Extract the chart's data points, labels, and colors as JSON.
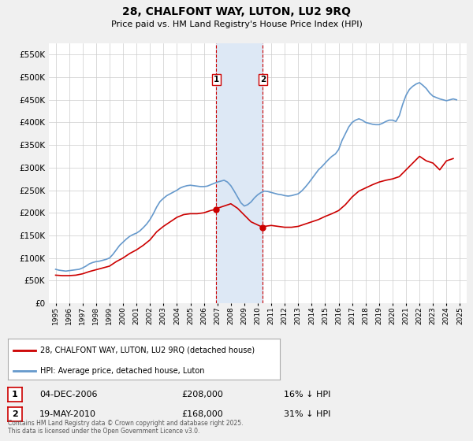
{
  "title": "28, CHALFONT WAY, LUTON, LU2 9RQ",
  "subtitle": "Price paid vs. HM Land Registry's House Price Index (HPI)",
  "legend_entry1": "28, CHALFONT WAY, LUTON, LU2 9RQ (detached house)",
  "legend_entry2": "HPI: Average price, detached house, Luton",
  "footnote": "Contains HM Land Registry data © Crown copyright and database right 2025.\nThis data is licensed under the Open Government Licence v3.0.",
  "sale1_date": "04-DEC-2006",
  "sale1_price": 208000,
  "sale1_hpi_diff": "16% ↓ HPI",
  "sale2_date": "19-MAY-2010",
  "sale2_price": 168000,
  "sale2_hpi_diff": "31% ↓ HPI",
  "sale1_x": 2006.92,
  "sale2_x": 2010.38,
  "background_color": "#f0f0f0",
  "plot_bg_color": "#ffffff",
  "grid_color": "#cccccc",
  "red_line_color": "#cc0000",
  "blue_line_color": "#6699cc",
  "shade_color": "#dde8f5",
  "vline_color": "#cc0000",
  "ylim": [
    0,
    575000
  ],
  "yticks": [
    0,
    50000,
    100000,
    150000,
    200000,
    250000,
    300000,
    350000,
    400000,
    450000,
    500000,
    550000
  ],
  "xlim": [
    1994.5,
    2025.5
  ],
  "hpi_data": {
    "years": [
      1995.0,
      1995.25,
      1995.5,
      1995.75,
      1996.0,
      1996.25,
      1996.5,
      1996.75,
      1997.0,
      1997.25,
      1997.5,
      1997.75,
      1998.0,
      1998.25,
      1998.5,
      1998.75,
      1999.0,
      1999.25,
      1999.5,
      1999.75,
      2000.0,
      2000.25,
      2000.5,
      2000.75,
      2001.0,
      2001.25,
      2001.5,
      2001.75,
      2002.0,
      2002.25,
      2002.5,
      2002.75,
      2003.0,
      2003.25,
      2003.5,
      2003.75,
      2004.0,
      2004.25,
      2004.5,
      2004.75,
      2005.0,
      2005.25,
      2005.5,
      2005.75,
      2006.0,
      2006.25,
      2006.5,
      2006.75,
      2007.0,
      2007.25,
      2007.5,
      2007.75,
      2008.0,
      2008.25,
      2008.5,
      2008.75,
      2009.0,
      2009.25,
      2009.5,
      2009.75,
      2010.0,
      2010.25,
      2010.5,
      2010.75,
      2011.0,
      2011.25,
      2011.5,
      2011.75,
      2012.0,
      2012.25,
      2012.5,
      2012.75,
      2013.0,
      2013.25,
      2013.5,
      2013.75,
      2014.0,
      2014.25,
      2014.5,
      2014.75,
      2015.0,
      2015.25,
      2015.5,
      2015.75,
      2016.0,
      2016.25,
      2016.5,
      2016.75,
      2017.0,
      2017.25,
      2017.5,
      2017.75,
      2018.0,
      2018.25,
      2018.5,
      2018.75,
      2019.0,
      2019.25,
      2019.5,
      2019.75,
      2020.0,
      2020.25,
      2020.5,
      2020.75,
      2021.0,
      2021.25,
      2021.5,
      2021.75,
      2022.0,
      2022.25,
      2022.5,
      2022.75,
      2023.0,
      2023.25,
      2023.5,
      2023.75,
      2024.0,
      2024.25,
      2024.5,
      2024.75
    ],
    "values": [
      75000,
      73000,
      72000,
      71000,
      72000,
      73000,
      74000,
      75000,
      78000,
      82000,
      87000,
      90000,
      92000,
      93000,
      95000,
      97000,
      100000,
      108000,
      118000,
      128000,
      135000,
      142000,
      148000,
      152000,
      155000,
      160000,
      167000,
      175000,
      185000,
      198000,
      213000,
      225000,
      232000,
      238000,
      242000,
      246000,
      250000,
      255000,
      258000,
      260000,
      261000,
      260000,
      259000,
      258000,
      258000,
      259000,
      262000,
      265000,
      268000,
      270000,
      272000,
      268000,
      260000,
      248000,
      235000,
      222000,
      215000,
      218000,
      224000,
      233000,
      240000,
      245000,
      248000,
      247000,
      245000,
      243000,
      241000,
      240000,
      238000,
      237000,
      238000,
      240000,
      242000,
      248000,
      256000,
      265000,
      275000,
      285000,
      295000,
      302000,
      310000,
      318000,
      325000,
      330000,
      340000,
      360000,
      375000,
      390000,
      400000,
      405000,
      408000,
      405000,
      400000,
      398000,
      396000,
      395000,
      395000,
      398000,
      402000,
      405000,
      405000,
      402000,
      415000,
      440000,
      460000,
      473000,
      480000,
      485000,
      488000,
      482000,
      475000,
      465000,
      458000,
      455000,
      452000,
      450000,
      448000,
      450000,
      452000,
      450000
    ]
  },
  "red_data": {
    "years": [
      1995.0,
      1995.5,
      1996.0,
      1996.5,
      1997.0,
      1997.5,
      1998.0,
      1998.5,
      1999.0,
      1999.5,
      2000.0,
      2000.5,
      2001.0,
      2001.5,
      2002.0,
      2002.5,
      2003.0,
      2003.5,
      2004.0,
      2004.5,
      2005.0,
      2005.5,
      2006.0,
      2006.5,
      2006.92,
      2007.0,
      2007.5,
      2008.0,
      2008.5,
      2009.0,
      2009.5,
      2010.0,
      2010.38,
      2010.5,
      2011.0,
      2011.5,
      2012.0,
      2012.5,
      2013.0,
      2013.5,
      2014.0,
      2014.5,
      2015.0,
      2015.5,
      2016.0,
      2016.5,
      2017.0,
      2017.5,
      2018.0,
      2018.5,
      2019.0,
      2019.5,
      2020.0,
      2020.5,
      2021.0,
      2021.5,
      2022.0,
      2022.5,
      2023.0,
      2023.5,
      2024.0,
      2024.5
    ],
    "values": [
      62000,
      61000,
      61000,
      62000,
      65000,
      70000,
      74000,
      78000,
      82000,
      92000,
      100000,
      110000,
      118000,
      128000,
      140000,
      158000,
      170000,
      180000,
      190000,
      196000,
      198000,
      198000,
      200000,
      205000,
      208000,
      210000,
      215000,
      220000,
      210000,
      195000,
      180000,
      173000,
      168000,
      170000,
      172000,
      170000,
      168000,
      168000,
      170000,
      175000,
      180000,
      185000,
      192000,
      198000,
      205000,
      218000,
      235000,
      248000,
      255000,
      262000,
      268000,
      272000,
      275000,
      280000,
      295000,
      310000,
      325000,
      315000,
      310000,
      295000,
      315000,
      320000
    ]
  }
}
